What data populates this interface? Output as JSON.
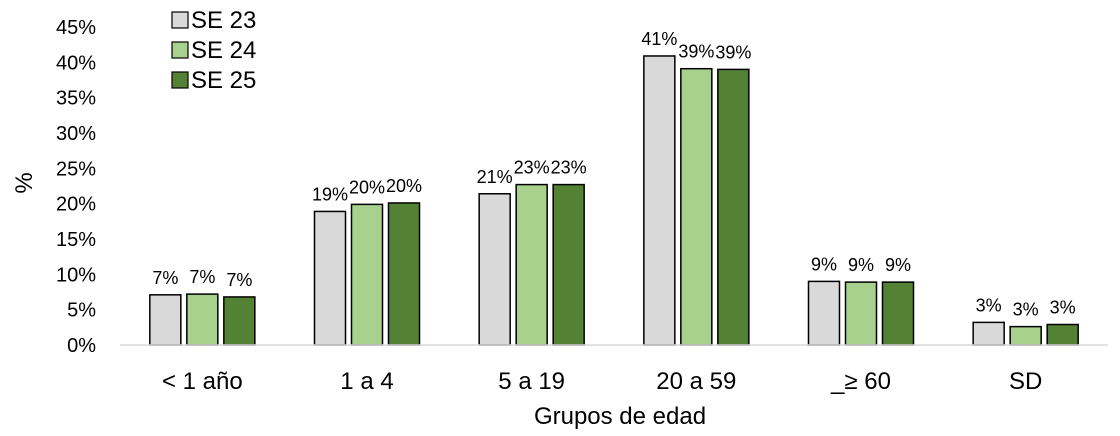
{
  "chart_data": {
    "type": "bar",
    "title": "",
    "xlabel": "Grupos de edad",
    "ylabel": "%",
    "ylim": [
      0,
      45
    ],
    "y_ticks": [
      "0%",
      "5%",
      "10%",
      "15%",
      "20%",
      "25%",
      "30%",
      "35%",
      "40%",
      "45%"
    ],
    "categories": [
      "< 1 año",
      "1 a 4",
      "5 a 19",
      "20 a 59",
      "_≥ 60",
      "SD"
    ],
    "grid": false,
    "legend_position": "top-left",
    "series": [
      {
        "name": "SE 23",
        "color": "#d9d9d9",
        "values": [
          7.1,
          18.9,
          21.4,
          40.9,
          9.0,
          3.2
        ],
        "labels": [
          "7%",
          "19%",
          "21%",
          "41%",
          "9%",
          "3%"
        ]
      },
      {
        "name": "SE 24",
        "color": "#a9d18e",
        "values": [
          7.2,
          19.9,
          22.7,
          39.1,
          8.9,
          2.6
        ],
        "labels": [
          "7%",
          "20%",
          "23%",
          "39%",
          "9%",
          "3%"
        ]
      },
      {
        "name": "SE 25",
        "color": "#548235",
        "values": [
          6.8,
          20.1,
          22.7,
          39.0,
          8.9,
          2.9
        ],
        "labels": [
          "7%",
          "20%",
          "23%",
          "39%",
          "9%",
          "3%"
        ]
      }
    ]
  }
}
